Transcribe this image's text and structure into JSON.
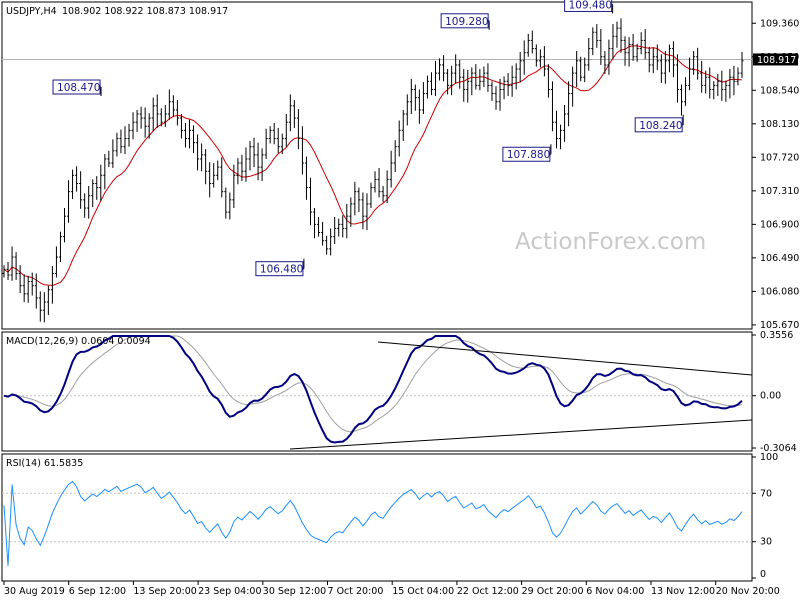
{
  "chart_data": [
    {
      "type": "candlestick",
      "title": "USDJPY,H4",
      "ohlc": [
        108.902,
        108.922,
        108.873,
        108.917
      ],
      "current_price": 108.917,
      "y_ticks": [
        105.67,
        106.08,
        106.49,
        106.9,
        107.31,
        107.72,
        108.13,
        108.54,
        108.95,
        109.36
      ],
      "ylim": [
        105.62,
        109.62
      ],
      "x_ticks": [
        "30 Aug 2019",
        "6 Sep 12:00",
        "13 Sep 20:00",
        "23 Sep 04:00",
        "30 Sep 12:00",
        "7 Oct 20:00",
        "15 Oct 04:00",
        "22 Oct 12:00",
        "29 Oct 20:00",
        "6 Nov 04:00",
        "13 Nov 12:00",
        "20 Nov 20:00"
      ],
      "annotations": [
        {
          "text": "108.470",
          "date": "10 Sep 2019",
          "price": 108.47
        },
        {
          "text": "106.480",
          "date": "3 Oct 2019",
          "price": 106.48
        },
        {
          "text": "109.280",
          "date": "24 Oct 2019",
          "price": 109.28
        },
        {
          "text": "107.880",
          "date": "31 Oct 2019",
          "price": 107.88
        },
        {
          "text": "109.480",
          "date": "7 Nov 2019",
          "price": 109.48
        },
        {
          "text": "108.240",
          "date": "15 Nov 2019",
          "price": 108.24
        }
      ],
      "closes": [
        106.35,
        106.28,
        106.5,
        106.3,
        106.15,
        106.05,
        106.2,
        106.15,
        106.0,
        105.85,
        105.95,
        106.1,
        106.3,
        106.5,
        106.75,
        107.0,
        107.3,
        107.5,
        107.4,
        107.2,
        107.1,
        107.25,
        107.4,
        107.35,
        107.5,
        107.7,
        107.65,
        107.8,
        107.95,
        107.85,
        107.95,
        108.05,
        108.15,
        108.25,
        108.2,
        108.1,
        108.2,
        108.35,
        108.25,
        108.15,
        108.25,
        108.4,
        108.3,
        108.2,
        108.05,
        107.95,
        108.05,
        107.9,
        107.7,
        107.75,
        107.55,
        107.4,
        107.5,
        107.6,
        107.3,
        107.05,
        107.2,
        107.5,
        107.65,
        107.55,
        107.7,
        107.85,
        107.75,
        107.6,
        107.75,
        107.95,
        108.05,
        107.95,
        107.85,
        107.95,
        108.15,
        108.35,
        108.2,
        107.95,
        107.65,
        107.35,
        107.05,
        106.9,
        106.8,
        106.7,
        106.6,
        106.75,
        106.85,
        106.9,
        106.85,
        107.0,
        107.15,
        107.3,
        107.2,
        107.0,
        107.15,
        107.35,
        107.45,
        107.3,
        107.25,
        107.45,
        107.65,
        107.85,
        108.05,
        108.25,
        108.4,
        108.55,
        108.45,
        108.3,
        108.5,
        108.65,
        108.55,
        108.75,
        108.85,
        108.75,
        108.6,
        108.75,
        108.85,
        108.7,
        108.55,
        108.65,
        108.75,
        108.6,
        108.65,
        108.75,
        108.6,
        108.5,
        108.4,
        108.55,
        108.65,
        108.6,
        108.7,
        108.8,
        108.9,
        109.0,
        109.15,
        109.05,
        108.9,
        108.95,
        108.8,
        108.55,
        108.15,
        107.95,
        108.05,
        108.25,
        108.5,
        108.75,
        108.9,
        108.7,
        108.85,
        109.05,
        109.25,
        109.15,
        108.95,
        108.85,
        109.05,
        109.2,
        109.3,
        109.15,
        109.0,
        109.1,
        108.95,
        109.05,
        109.15,
        109.0,
        108.85,
        108.95,
        108.9,
        108.75,
        108.9,
        109.05,
        108.85,
        108.55,
        108.4,
        108.6,
        108.8,
        108.95,
        108.75,
        108.6,
        108.7,
        108.55,
        108.6,
        108.65,
        108.55,
        108.6,
        108.7,
        108.65,
        108.75,
        108.9
      ]
    },
    {
      "type": "line",
      "title": "MACD(12,26,9) 0.0604 0.0094",
      "y_ticks": [
        "0.3556",
        "0.00",
        "-0.3064"
      ]
    },
    {
      "type": "line",
      "title": "RSI(14) 61.5835",
      "y_ticks": [
        "100",
        "70",
        "30",
        "0"
      ]
    }
  ],
  "watermark": "ActionForex.com",
  "colors": {
    "ma": "#cc0000",
    "macd": "#000080",
    "signal": "#a0a0a0",
    "rsi": "#1e90ff",
    "label_border": "#1a1a8a"
  }
}
